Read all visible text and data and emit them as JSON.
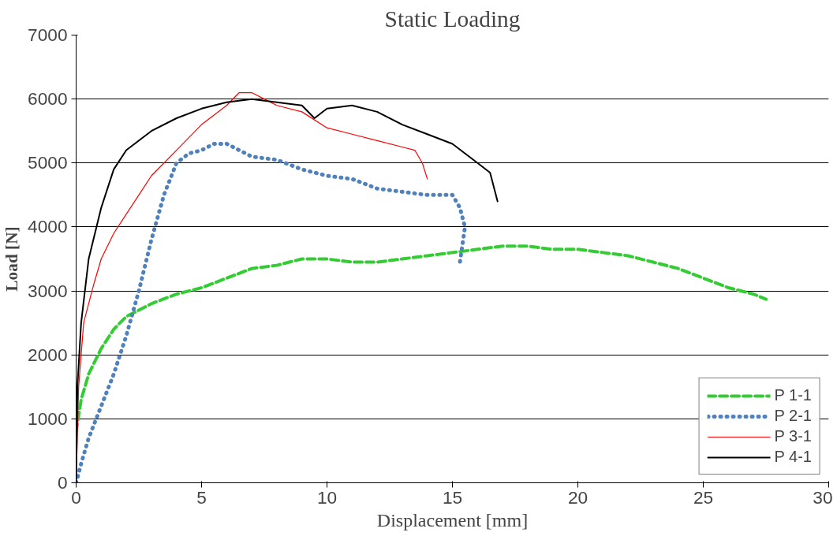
{
  "chart_data": {
    "type": "line",
    "title": "Static Loading",
    "xlabel": "Displacement [mm]",
    "ylabel": "Load [N]",
    "xlim": [
      0,
      30
    ],
    "xticks": [
      0,
      5,
      10,
      15,
      20,
      25,
      30
    ],
    "ylim": [
      0,
      7000
    ],
    "yticks": [
      0,
      1000,
      2000,
      3000,
      4000,
      5000,
      6000,
      7000
    ],
    "grid": "y",
    "legend": "bottom right",
    "marker": "none",
    "series": [
      {
        "name": "P 1-1",
        "color": "#33cc33",
        "line_style": "dashed",
        "x": [
          0,
          0.2,
          0.5,
          1,
          1.5,
          2,
          3,
          4,
          5,
          6,
          7,
          8,
          9,
          10,
          11,
          12,
          13,
          14,
          15,
          16,
          17,
          18,
          19,
          20,
          21,
          22,
          23,
          24,
          25,
          26,
          27,
          27.5
        ],
        "values": [
          800,
          1300,
          1700,
          2100,
          2400,
          2600,
          2800,
          2950,
          3050,
          3200,
          3350,
          3400,
          3500,
          3500,
          3450,
          3450,
          3500,
          3550,
          3600,
          3650,
          3700,
          3700,
          3650,
          3650,
          3600,
          3550,
          3450,
          3350,
          3200,
          3050,
          2950,
          2870
        ]
      },
      {
        "name": "P 2-1",
        "color": "#4f81bd",
        "line_style": "dotted",
        "x": [
          0,
          0.2,
          0.5,
          1,
          1.5,
          2,
          2.5,
          3,
          3.5,
          4,
          4.5,
          5,
          5.5,
          6,
          6.5,
          7,
          8,
          9,
          10,
          11,
          12,
          13,
          14,
          15,
          15.3,
          15.5,
          15.3
        ],
        "values": [
          0,
          300,
          700,
          1200,
          1700,
          2300,
          3000,
          3800,
          4500,
          5000,
          5150,
          5200,
          5300,
          5300,
          5200,
          5100,
          5050,
          4900,
          4800,
          4750,
          4600,
          4550,
          4500,
          4500,
          4300,
          4000,
          3450
        ]
      },
      {
        "name": "P 3-1",
        "color": "#ff0000",
        "line_style": "solid",
        "x": [
          0,
          0.1,
          0.3,
          0.7,
          1,
          1.5,
          2,
          2.5,
          3,
          4,
          5,
          6,
          6.5,
          7,
          7.5,
          8,
          9,
          10,
          11,
          12,
          13,
          13.5,
          13.8,
          14
        ],
        "values": [
          0,
          1500,
          2500,
          3100,
          3500,
          3900,
          4200,
          4500,
          4800,
          5200,
          5600,
          5900,
          6100,
          6100,
          6000,
          5900,
          5800,
          5550,
          5450,
          5350,
          5250,
          5200,
          5000,
          4750
        ]
      },
      {
        "name": "P 4-1",
        "color": "#000000",
        "line_style": "solid",
        "x": [
          0,
          0.05,
          0.2,
          0.5,
          1,
          1.5,
          2,
          3,
          4,
          5,
          6,
          7,
          8,
          9,
          9.5,
          10,
          11,
          12,
          13,
          14,
          15,
          16,
          16.5,
          16.8
        ],
        "values": [
          0,
          1500,
          2500,
          3500,
          4300,
          4900,
          5200,
          5500,
          5700,
          5850,
          5950,
          6000,
          5950,
          5900,
          5700,
          5850,
          5900,
          5800,
          5600,
          5450,
          5300,
          5000,
          4850,
          4400
        ]
      }
    ]
  }
}
